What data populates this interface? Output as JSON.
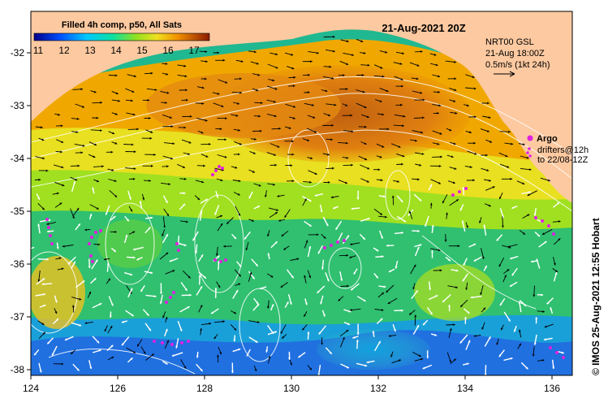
{
  "title": "21-Aug-2021 20Z",
  "colorbar": {
    "label": "Filled 4h comp, p50, All Sats",
    "ticks": [
      "11",
      "12",
      "13",
      "14",
      "15",
      "16",
      "17"
    ],
    "colors": [
      "#00008b",
      "#0040ff",
      "#00c0ff",
      "#00e0a0",
      "#60e020",
      "#e0e020",
      "#f0a000",
      "#d06000",
      "#8b1a00"
    ]
  },
  "info": {
    "line1": "NRT00 GSL",
    "line2": "21-Aug 18:00Z",
    "line3": "0.5m/s (1kt 24h)"
  },
  "argo": {
    "label": "Argo",
    "drifters_line1": "drifters@12h",
    "drifters_line2": "to 22/08-12Z"
  },
  "credit": "© IMOS 25-Aug-2021 12:55 Hobart",
  "axes": {
    "x_ticks": [
      "124",
      "126",
      "128",
      "130",
      "132",
      "134",
      "136"
    ],
    "y_ticks": [
      "-32",
      "-33",
      "-34",
      "-35",
      "-36",
      "-37",
      "-38"
    ]
  },
  "colors": {
    "land": "#fdc9a0",
    "warm": "#e07800",
    "cool": "#00a0d0",
    "argo": "#e020e0"
  }
}
